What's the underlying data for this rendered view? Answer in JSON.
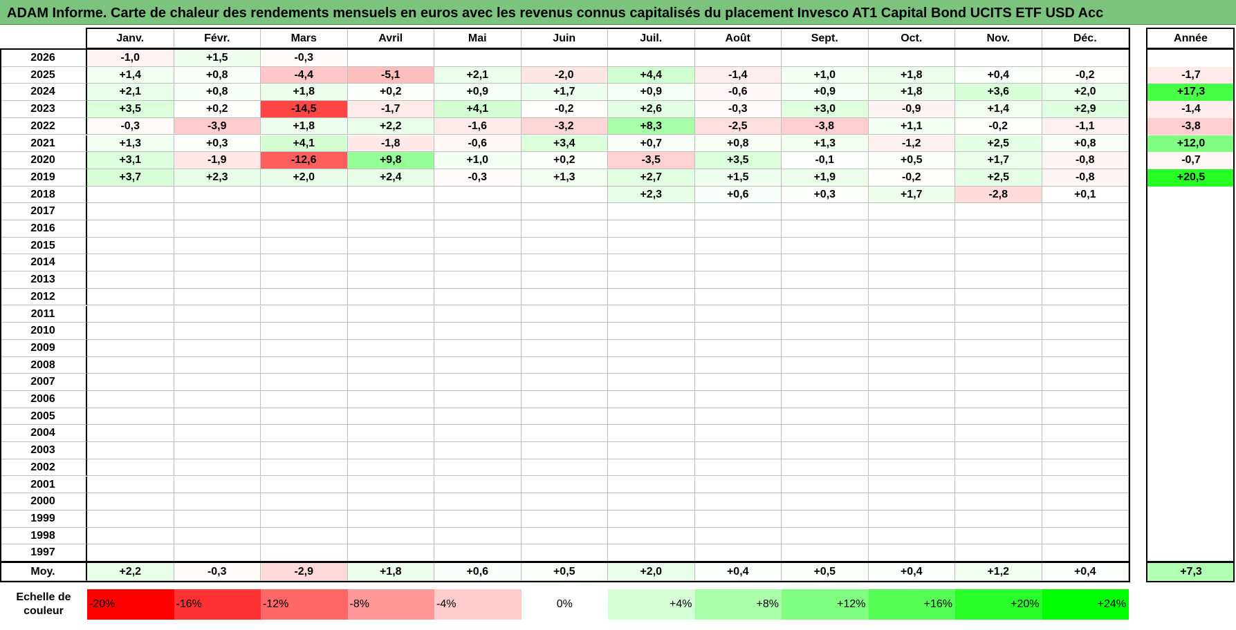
{
  "title": "ADAM Informe. Carte de chaleur des rendements mensuels en euros avec les revenus connus capitalisés du placement Invesco AT1 Capital Bond UCITS ETF USD Acc",
  "colors": {
    "negative_max": "#ff0000",
    "positive_max": "#00ff00",
    "neutral": "#ffffff",
    "title_bg": "#7cc47e"
  },
  "chart_data": {
    "type": "heatmap",
    "columns": [
      "Janv.",
      "Févr.",
      "Mars",
      "Avril",
      "Mai",
      "Juin",
      "Juil.",
      "Août",
      "Sept.",
      "Oct.",
      "Nov.",
      "Déc."
    ],
    "year_header": "Année",
    "rows": [
      {
        "year": "2026",
        "values": [
          "-1,0",
          "+1,5",
          "-0,3",
          "",
          "",
          "",
          "",
          "",
          "",
          "",
          "",
          ""
        ],
        "annual": ""
      },
      {
        "year": "2025",
        "values": [
          "+1,4",
          "+0,8",
          "-4,4",
          "-5,1",
          "+2,1",
          "-2,0",
          "+4,4",
          "-1,4",
          "+1,0",
          "+1,8",
          "+0,4",
          "-0,2"
        ],
        "annual": "-1,7"
      },
      {
        "year": "2024",
        "values": [
          "+2,1",
          "+0,8",
          "+1,8",
          "+0,2",
          "+0,9",
          "+1,7",
          "+0,9",
          "-0,6",
          "+0,9",
          "+1,8",
          "+3,6",
          "+2,0"
        ],
        "annual": "+17,3"
      },
      {
        "year": "2023",
        "values": [
          "+3,5",
          "+0,2",
          "-14,5",
          "-1,7",
          "+4,1",
          "-0,2",
          "+2,6",
          "-0,3",
          "+3,0",
          "-0,9",
          "+1,4",
          "+2,9"
        ],
        "annual": "-1,4"
      },
      {
        "year": "2022",
        "values": [
          "-0,3",
          "-3,9",
          "+1,8",
          "+2,2",
          "-1,6",
          "-3,2",
          "+8,3",
          "-2,5",
          "-3,8",
          "+1,1",
          "-0,2",
          "-1,1"
        ],
        "annual": "-3,8"
      },
      {
        "year": "2021",
        "values": [
          "+1,3",
          "+0,3",
          "+4,1",
          "-1,8",
          "-0,6",
          "+3,4",
          "+0,7",
          "+0,8",
          "+1,3",
          "-1,2",
          "+2,5",
          "+0,8"
        ],
        "annual": "+12,0"
      },
      {
        "year": "2020",
        "values": [
          "+3,1",
          "-1,9",
          "-12,6",
          "+9,8",
          "+1,0",
          "+0,2",
          "-3,5",
          "+3,5",
          "-0,1",
          "+0,5",
          "+1,7",
          "-0,8"
        ],
        "annual": "-0,7"
      },
      {
        "year": "2019",
        "values": [
          "+3,7",
          "+2,3",
          "+2,0",
          "+2,4",
          "-0,3",
          "+1,3",
          "+2,7",
          "+1,5",
          "+1,9",
          "-0,2",
          "+2,5",
          "-0,8"
        ],
        "annual": "+20,5"
      },
      {
        "year": "2018",
        "values": [
          "",
          "",
          "",
          "",
          "",
          "",
          "+2,3",
          "+0,6",
          "+0,3",
          "+1,7",
          "-2,8",
          "+0,1"
        ],
        "annual": ""
      },
      {
        "year": "2017",
        "values": [
          "",
          "",
          "",
          "",
          "",
          "",
          "",
          "",
          "",
          "",
          "",
          ""
        ],
        "annual": ""
      },
      {
        "year": "2016",
        "values": [
          "",
          "",
          "",
          "",
          "",
          "",
          "",
          "",
          "",
          "",
          "",
          ""
        ],
        "annual": ""
      },
      {
        "year": "2015",
        "values": [
          "",
          "",
          "",
          "",
          "",
          "",
          "",
          "",
          "",
          "",
          "",
          ""
        ],
        "annual": ""
      },
      {
        "year": "2014",
        "values": [
          "",
          "",
          "",
          "",
          "",
          "",
          "",
          "",
          "",
          "",
          "",
          ""
        ],
        "annual": ""
      },
      {
        "year": "2013",
        "values": [
          "",
          "",
          "",
          "",
          "",
          "",
          "",
          "",
          "",
          "",
          "",
          ""
        ],
        "annual": ""
      },
      {
        "year": "2012",
        "values": [
          "",
          "",
          "",
          "",
          "",
          "",
          "",
          "",
          "",
          "",
          "",
          ""
        ],
        "annual": ""
      },
      {
        "year": "2011",
        "values": [
          "",
          "",
          "",
          "",
          "",
          "",
          "",
          "",
          "",
          "",
          "",
          ""
        ],
        "annual": ""
      },
      {
        "year": "2010",
        "values": [
          "",
          "",
          "",
          "",
          "",
          "",
          "",
          "",
          "",
          "",
          "",
          ""
        ],
        "annual": ""
      },
      {
        "year": "2009",
        "values": [
          "",
          "",
          "",
          "",
          "",
          "",
          "",
          "",
          "",
          "",
          "",
          ""
        ],
        "annual": ""
      },
      {
        "year": "2008",
        "values": [
          "",
          "",
          "",
          "",
          "",
          "",
          "",
          "",
          "",
          "",
          "",
          ""
        ],
        "annual": ""
      },
      {
        "year": "2007",
        "values": [
          "",
          "",
          "",
          "",
          "",
          "",
          "",
          "",
          "",
          "",
          "",
          ""
        ],
        "annual": ""
      },
      {
        "year": "2006",
        "values": [
          "",
          "",
          "",
          "",
          "",
          "",
          "",
          "",
          "",
          "",
          "",
          ""
        ],
        "annual": ""
      },
      {
        "year": "2005",
        "values": [
          "",
          "",
          "",
          "",
          "",
          "",
          "",
          "",
          "",
          "",
          "",
          ""
        ],
        "annual": ""
      },
      {
        "year": "2004",
        "values": [
          "",
          "",
          "",
          "",
          "",
          "",
          "",
          "",
          "",
          "",
          "",
          ""
        ],
        "annual": ""
      },
      {
        "year": "2003",
        "values": [
          "",
          "",
          "",
          "",
          "",
          "",
          "",
          "",
          "",
          "",
          "",
          ""
        ],
        "annual": ""
      },
      {
        "year": "2002",
        "values": [
          "",
          "",
          "",
          "",
          "",
          "",
          "",
          "",
          "",
          "",
          "",
          ""
        ],
        "annual": ""
      },
      {
        "year": "2001",
        "values": [
          "",
          "",
          "",
          "",
          "",
          "",
          "",
          "",
          "",
          "",
          "",
          ""
        ],
        "annual": ""
      },
      {
        "year": "2000",
        "values": [
          "",
          "",
          "",
          "",
          "",
          "",
          "",
          "",
          "",
          "",
          "",
          ""
        ],
        "annual": ""
      },
      {
        "year": "1999",
        "values": [
          "",
          "",
          "",
          "",
          "",
          "",
          "",
          "",
          "",
          "",
          "",
          ""
        ],
        "annual": ""
      },
      {
        "year": "1998",
        "values": [
          "",
          "",
          "",
          "",
          "",
          "",
          "",
          "",
          "",
          "",
          "",
          ""
        ],
        "annual": ""
      },
      {
        "year": "1997",
        "values": [
          "",
          "",
          "",
          "",
          "",
          "",
          "",
          "",
          "",
          "",
          "",
          ""
        ],
        "annual": ""
      }
    ],
    "average": {
      "label": "Moy.",
      "values": [
        "+2,2",
        "-0,3",
        "-2,9",
        "+1,8",
        "+0,6",
        "+0,5",
        "+2,0",
        "+0,4",
        "+0,5",
        "+0,4",
        "+1,2",
        "+0,4"
      ],
      "annual": "+7,3"
    },
    "scale": {
      "label_line1": "Echelle de",
      "label_line2": "couleur",
      "steps": [
        "-20%",
        "-16%",
        "-12%",
        "-8%",
        "-4%",
        "0%",
        "+4%",
        "+8%",
        "+12%",
        "+16%",
        "+20%",
        "+24%"
      ],
      "step_values": [
        -20,
        -16,
        -12,
        -8,
        -4,
        0,
        4,
        8,
        12,
        16,
        20,
        24
      ]
    }
  }
}
